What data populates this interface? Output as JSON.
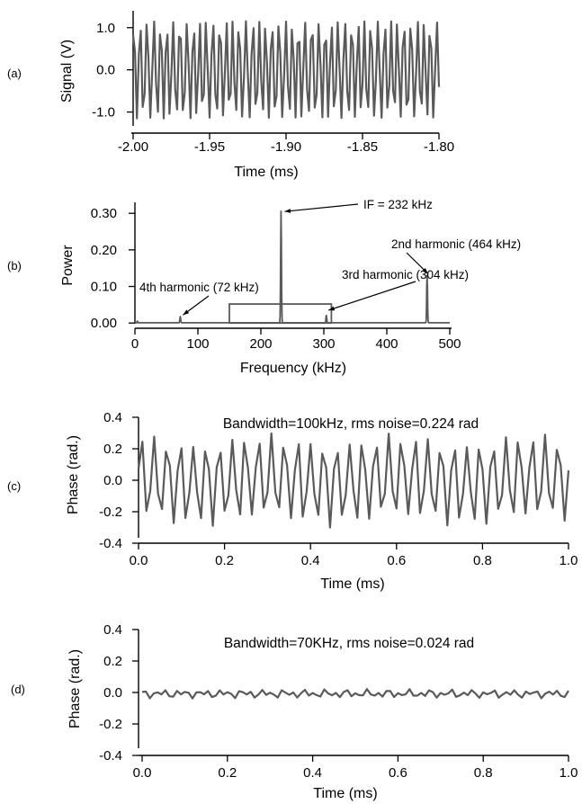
{
  "colors": {
    "trace": "#5a5a5a",
    "axis": "#000000",
    "background": "#ffffff"
  },
  "chart_data": [
    {
      "panel": "(a)",
      "type": "line",
      "title": "",
      "xlabel": "Time (ms)",
      "ylabel": "Signal (V)",
      "xlim": [
        -2.0,
        -1.8
      ],
      "ylim": [
        -1.5,
        1.4
      ],
      "xticks": [
        -2.0,
        -1.95,
        -1.9,
        -1.85,
        -1.8
      ],
      "xtick_labels": [
        "-2.00",
        "-1.95",
        "-1.90",
        "-1.85",
        "-1.80"
      ],
      "yticks": [
        1.0,
        0.0,
        -1.0
      ],
      "ytick_labels": [
        "1.0",
        "0.0",
        "-1.0"
      ],
      "signal": {
        "frequency_khz": 232,
        "amplitude_v": 1.15,
        "samples": 160
      }
    },
    {
      "panel": "(b)",
      "type": "line",
      "title": "",
      "xlabel": "Frequency (kHz)",
      "ylabel": "Power",
      "xlim": [
        0,
        500
      ],
      "ylim": [
        -0.002,
        0.33
      ],
      "xticks": [
        0,
        100,
        200,
        300,
        400,
        500
      ],
      "xtick_labels": [
        "0",
        "100",
        "200",
        "300",
        "400",
        "500"
      ],
      "yticks": [
        0.0,
        0.1,
        0.2,
        0.3
      ],
      "ytick_labels": [
        "0.00",
        "0.10",
        "0.20",
        "0.30"
      ],
      "peaks": [
        {
          "frequency_khz": 72,
          "power": 0.017
        },
        {
          "frequency_khz": 232,
          "power": 0.305
        },
        {
          "frequency_khz": 304,
          "power": 0.02
        },
        {
          "frequency_khz": 464,
          "power": 0.13
        }
      ],
      "box": {
        "x": [
          150,
          312
        ],
        "y": [
          0.0,
          0.052
        ]
      },
      "annotations": [
        {
          "text": "IF = 232 kHz",
          "target": [
            232,
            0.305
          ]
        },
        {
          "text": "2nd harmonic (464 kHz)",
          "target": [
            464,
            0.13
          ]
        },
        {
          "text": "3rd harmonic (304 kHz)",
          "target": [
            306,
            0.03
          ]
        },
        {
          "text": "4th harmonic (72 kHz)",
          "target": [
            72,
            0.017
          ]
        }
      ]
    },
    {
      "panel": "(c)",
      "type": "line",
      "title": "Bandwidth=100kHz, rms noise=0.224 rad",
      "xlabel": "Time (ms)",
      "ylabel": "Phase (rad.)",
      "xlim": [
        0.0,
        1.0
      ],
      "ylim": [
        -0.4,
        0.4
      ],
      "xticks": [
        0.0,
        0.2,
        0.4,
        0.6,
        0.8,
        1.0
      ],
      "xtick_labels": [
        "0.0",
        "0.2",
        "0.4",
        "0.6",
        "0.8",
        "1.0"
      ],
      "yticks": [
        0.4,
        0.2,
        0.0,
        -0.2,
        -0.4
      ],
      "ytick_labels": [
        "0.4",
        "0.2",
        "0.0",
        "-0.2",
        "-0.4"
      ],
      "signal": {
        "cycles": 33,
        "amplitude_rad": 0.3,
        "samples": 110
      }
    },
    {
      "panel": "(d)",
      "type": "line",
      "title": "Bandwidth=70KHz, rms noise=0.024 rad",
      "xlabel": "Time (ms)",
      "ylabel": "Phase (rad.)",
      "xlim": [
        0.0,
        1.0
      ],
      "ylim": [
        -0.4,
        0.4
      ],
      "xticks": [
        0.0,
        0.2,
        0.4,
        0.6,
        0.8,
        1.0
      ],
      "xtick_labels": [
        "0.0",
        "0.2",
        "0.4",
        "0.6",
        "0.8",
        "1.0"
      ],
      "yticks": [
        0.4,
        0.2,
        0.0,
        -0.2,
        -0.4
      ],
      "ytick_labels": [
        "0.4",
        "0.2",
        "0.0",
        "-0.2",
        "-0.4"
      ],
      "signal": {
        "amplitude_rad": 0.03,
        "samples": 110
      }
    }
  ]
}
